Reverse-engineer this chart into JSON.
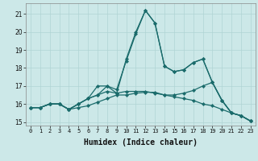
{
  "title": "",
  "xlabel": "Humidex (Indice chaleur)",
  "bg_color": "#cce8e8",
  "grid_color": "#b0d4d4",
  "line_color": "#1a6b6b",
  "xlim": [
    -0.5,
    23.5
  ],
  "ylim": [
    14.8,
    21.6
  ],
  "yticks": [
    15,
    16,
    17,
    18,
    19,
    20,
    21
  ],
  "xticks": [
    0,
    1,
    2,
    3,
    4,
    5,
    6,
    7,
    8,
    9,
    10,
    11,
    12,
    13,
    14,
    15,
    16,
    17,
    18,
    19,
    20,
    21,
    22,
    23
  ],
  "line1_x": [
    0,
    1,
    2,
    3,
    4,
    5,
    6,
    7,
    8,
    9,
    10,
    11,
    12,
    13,
    14,
    15,
    16,
    17,
    18,
    19,
    20,
    21,
    22,
    23
  ],
  "line1_y": [
    15.8,
    15.8,
    16.0,
    16.0,
    15.7,
    15.8,
    15.9,
    16.1,
    16.3,
    16.5,
    16.5,
    16.6,
    16.65,
    16.65,
    16.5,
    16.4,
    16.3,
    16.2,
    16.0,
    15.9,
    15.7,
    15.5,
    15.35,
    15.05
  ],
  "line2_x": [
    0,
    1,
    2,
    3,
    4,
    5,
    6,
    7,
    8,
    9,
    10,
    11,
    12,
    13,
    14,
    15,
    16,
    17,
    18,
    19,
    20,
    21,
    22,
    23
  ],
  "line2_y": [
    15.8,
    15.8,
    16.0,
    16.0,
    15.7,
    16.0,
    16.3,
    17.0,
    17.0,
    16.8,
    18.4,
    19.9,
    21.2,
    20.5,
    18.1,
    17.8,
    17.9,
    18.3,
    18.5,
    17.2,
    16.2,
    15.5,
    15.35,
    15.05
  ],
  "line3_x": [
    0,
    1,
    2,
    3,
    4,
    5,
    6,
    7,
    8,
    9,
    10,
    11,
    12,
    13,
    14,
    15,
    16,
    17,
    18,
    19,
    20,
    21,
    22,
    23
  ],
  "line3_y": [
    15.8,
    15.8,
    16.0,
    16.0,
    15.7,
    16.0,
    16.3,
    16.5,
    17.0,
    16.6,
    18.5,
    20.0,
    21.2,
    20.5,
    18.1,
    17.8,
    17.9,
    18.3,
    18.5,
    17.2,
    16.2,
    15.5,
    15.35,
    15.05
  ],
  "line4_x": [
    0,
    1,
    2,
    3,
    4,
    5,
    6,
    7,
    8,
    9,
    10,
    11,
    12,
    13,
    14,
    15,
    16,
    17,
    18,
    19,
    20,
    21,
    22,
    23
  ],
  "line4_y": [
    15.8,
    15.8,
    16.0,
    16.0,
    15.7,
    16.0,
    16.3,
    16.5,
    16.7,
    16.6,
    16.7,
    16.7,
    16.7,
    16.6,
    16.5,
    16.5,
    16.6,
    16.75,
    17.0,
    17.2,
    16.2,
    15.5,
    15.35,
    15.05
  ]
}
